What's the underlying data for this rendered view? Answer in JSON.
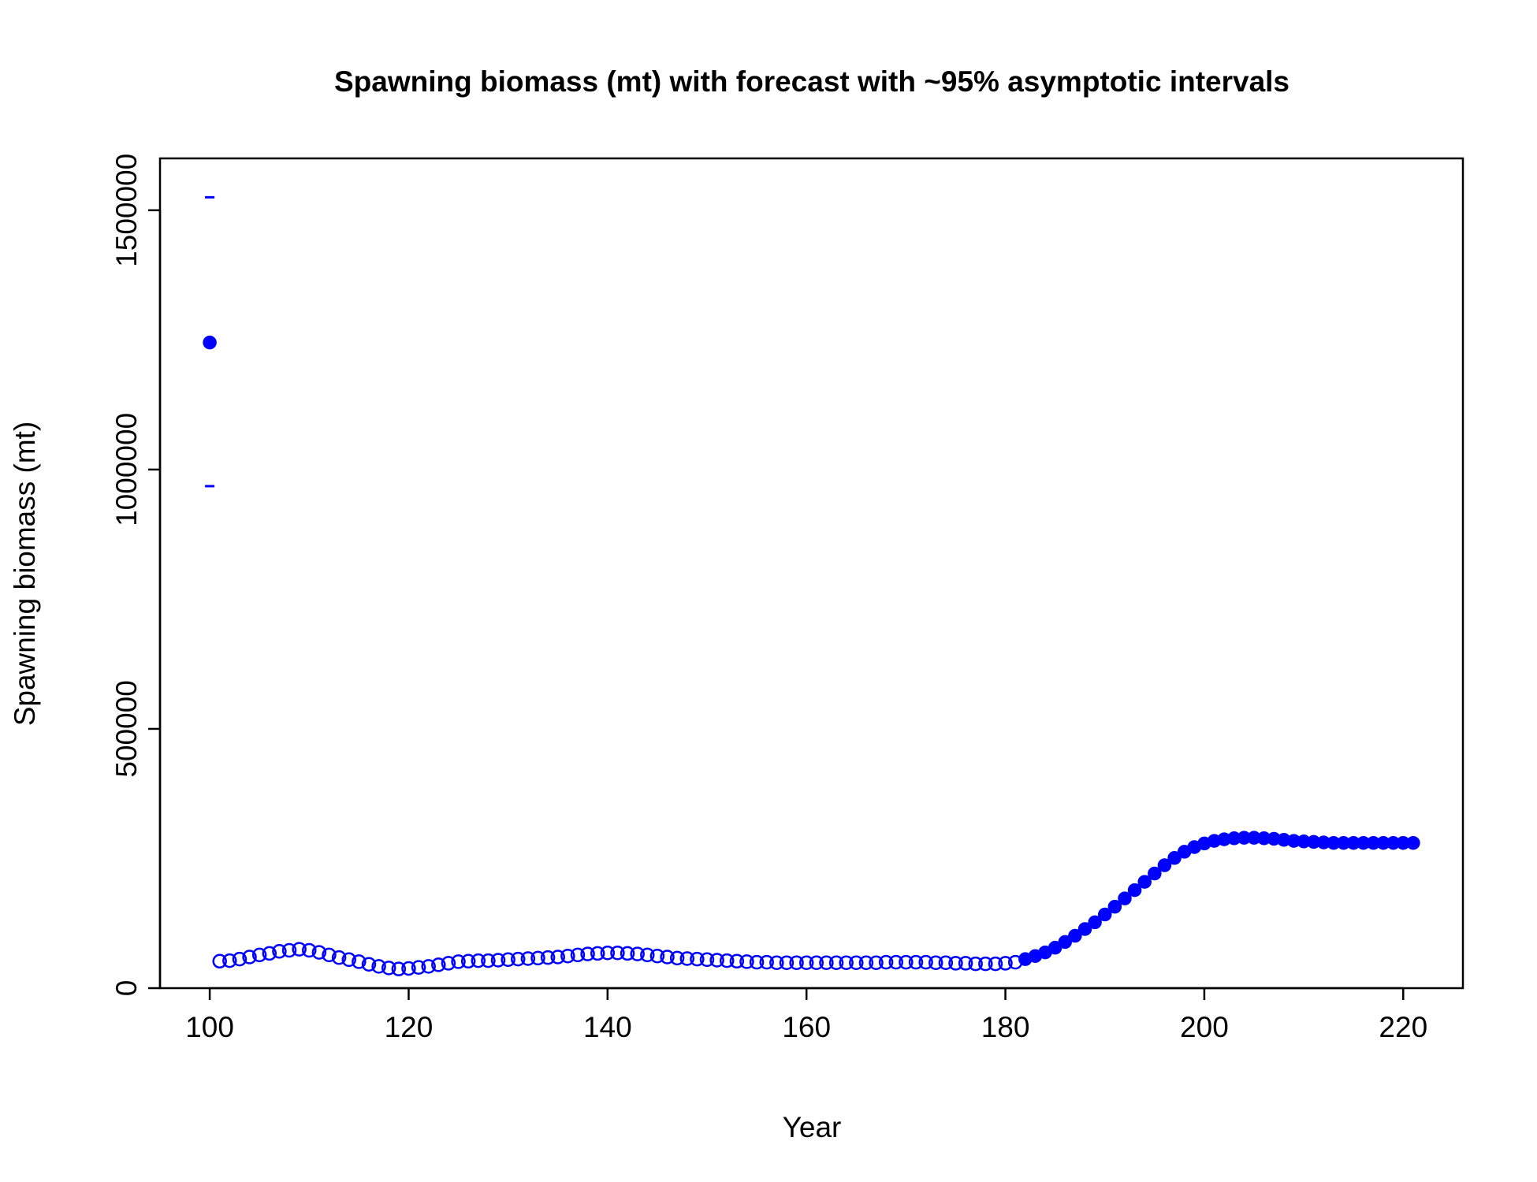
{
  "chart_data": {
    "type": "scatter",
    "title": "Spawning biomass (mt) with forecast with ~95% asymptotic intervals",
    "xlabel": "Year",
    "ylabel": "Spawning biomass (mt)",
    "xlim": [
      95,
      226
    ],
    "ylim": [
      0,
      1600000
    ],
    "xticks": [
      100,
      120,
      140,
      160,
      180,
      200,
      220
    ],
    "yticks": [
      0,
      500000,
      1000000,
      1500000
    ],
    "grid": false,
    "legend": "none",
    "color": "#0000ff",
    "series": [
      {
        "style": "filled",
        "x": [
          100
        ],
        "y": [
          1245000
        ]
      },
      {
        "style": "open",
        "x": [
          101,
          102,
          103,
          104,
          105,
          106,
          107,
          108,
          109,
          110,
          111,
          112,
          113,
          114,
          115,
          116,
          117,
          118,
          119,
          120,
          121,
          122,
          123,
          124,
          125,
          126,
          127,
          128,
          129,
          130,
          131,
          132,
          133,
          134,
          135,
          136,
          137,
          138,
          139,
          140,
          141,
          142,
          143,
          144,
          145,
          146,
          147,
          148,
          149,
          150,
          151,
          152,
          153,
          154,
          155,
          156,
          157,
          158,
          159,
          160,
          161,
          162,
          163,
          164,
          165,
          166,
          167,
          168,
          169,
          170,
          171,
          172,
          173,
          174,
          175,
          176,
          177,
          178,
          179,
          180,
          181
        ],
        "y": [
          52000,
          53000,
          56000,
          60000,
          64000,
          67000,
          71000,
          73000,
          75000,
          73000,
          69000,
          64000,
          59000,
          55000,
          51000,
          46000,
          42000,
          39000,
          37000,
          38000,
          40000,
          42000,
          45000,
          48000,
          51000,
          52000,
          53000,
          53000,
          54000,
          55000,
          56000,
          57000,
          58000,
          59000,
          60000,
          62000,
          64000,
          66000,
          67000,
          68000,
          68000,
          67000,
          66000,
          64000,
          62000,
          60000,
          58000,
          57000,
          56000,
          55000,
          54000,
          53000,
          52000,
          51000,
          50000,
          50000,
          49000,
          49000,
          49000,
          49000,
          49000,
          49000,
          49000,
          49000,
          49000,
          49000,
          49000,
          50000,
          50000,
          50000,
          50000,
          50000,
          49000,
          49000,
          48000,
          48000,
          47000,
          47000,
          47000,
          48000,
          50000
        ]
      },
      {
        "style": "filled",
        "x": [
          182,
          183,
          184,
          185,
          186,
          187,
          188,
          189,
          190,
          191,
          192,
          193,
          194,
          195,
          196,
          197,
          198,
          199,
          200,
          201,
          202,
          203,
          204,
          205,
          206,
          207,
          208,
          209,
          210,
          211,
          212,
          213,
          214,
          215,
          216,
          217,
          218,
          219,
          220,
          221
        ],
        "y": [
          56000,
          62000,
          69000,
          78000,
          89000,
          101000,
          114000,
          127000,
          142000,
          157000,
          173000,
          189000,
          205000,
          221000,
          237000,
          251000,
          263000,
          272000,
          279000,
          284000,
          287000,
          289000,
          290000,
          290000,
          289000,
          288000,
          286000,
          284000,
          283000,
          282000,
          281000,
          280000,
          280000,
          280000,
          280000,
          280000,
          280000,
          280000,
          280000,
          280000
        ]
      }
    ],
    "intervals": [
      {
        "x": 100,
        "lower": 968000,
        "upper": 1525000
      }
    ]
  }
}
